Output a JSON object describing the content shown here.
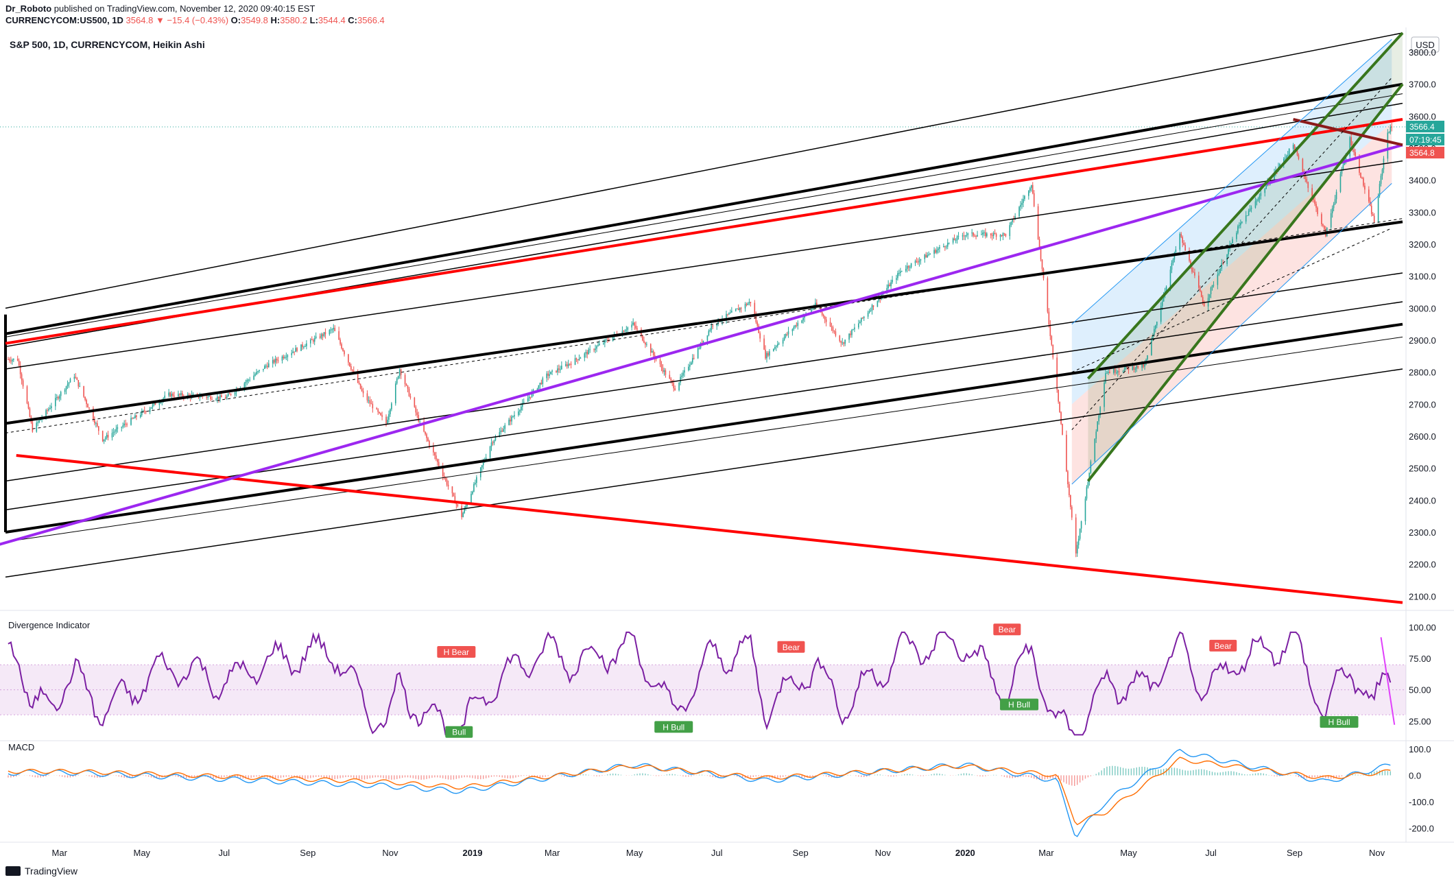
{
  "header": {
    "author": "Dr_Roboto",
    "published": "published on TradingView.com, November 12, 2020 09:40:15 EST",
    "symbol": "CURRENCYCOM:US500, 1D",
    "last": "3564.8",
    "change": "▼ −15.4 (−0.43%)",
    "o_label": "O:",
    "o": "3549.8",
    "h_label": "H:",
    "h": "3580.2",
    "l_label": "L:",
    "l": "3544.4",
    "c_label": "C:",
    "c": "3566.4"
  },
  "pane_title": "S&P 500, 1D, CURRENCYCOM, Heikin Ashi",
  "currency": "USD",
  "price_badges": {
    "last": "3566.4",
    "countdown": "07:19:45",
    "prev": "3564.8"
  },
  "colors": {
    "up": "#26a69a",
    "down": "#ef5350",
    "rsi": "#7b1fa2",
    "macd": "#2196f3",
    "signal": "#ff6d00",
    "trend_black": "#000000",
    "trend_red": "#ff0000",
    "trend_purple": "#9c27f0",
    "trend_green": "#38761d",
    "trend_darkred": "#8b1a1a",
    "bull": "#43a047",
    "bear": "#f05350"
  },
  "footer": {
    "brand": "TradingView",
    "icon": "tradingview-logo"
  },
  "chart_data": [
    {
      "type": "candlestick",
      "title": "S&P 500, 1D, CURRENCYCOM, Heikin Ashi",
      "x_ticks": [
        "Mar",
        "May",
        "Jul",
        "Sep",
        "Nov",
        "2019",
        "Mar",
        "May",
        "Jul",
        "Sep",
        "Nov",
        "2020",
        "Mar",
        "May",
        "Jul",
        "Sep",
        "Nov"
      ],
      "y_ticks": [
        2100.0,
        2200.0,
        2300.0,
        2400.0,
        2500.0,
        2600.0,
        2700.0,
        2800.0,
        2900.0,
        3000.0,
        3100.0,
        3200.0,
        3300.0,
        3400.0,
        3500.0,
        3600.0,
        3700.0,
        3800.0
      ],
      "ylim": [
        2060,
        3860
      ],
      "last_price": 3566.4,
      "series": [
        {
          "name": "close",
          "points": [
            [
              "2018-01-29",
              2840
            ],
            [
              "2018-02-09",
              2620
            ],
            [
              "2018-03-12",
              2790
            ],
            [
              "2018-04-02",
              2590
            ],
            [
              "2018-05-21",
              2730
            ],
            [
              "2018-07-02",
              2720
            ],
            [
              "2018-08-01",
              2820
            ],
            [
              "2018-09-20",
              2935
            ],
            [
              "2018-10-12",
              2730
            ],
            [
              "2018-10-29",
              2640
            ],
            [
              "2018-11-08",
              2810
            ],
            [
              "2018-11-23",
              2640
            ],
            [
              "2018-12-24",
              2350
            ],
            [
              "2019-01-15",
              2580
            ],
            [
              "2019-02-25",
              2790
            ],
            [
              "2019-03-15",
              2830
            ],
            [
              "2019-04-30",
              2950
            ],
            [
              "2019-05-31",
              2750
            ],
            [
              "2019-06-28",
              2950
            ],
            [
              "2019-07-26",
              3020
            ],
            [
              "2019-08-06",
              2850
            ],
            [
              "2019-09-12",
              3010
            ],
            [
              "2019-10-02",
              2890
            ],
            [
              "2019-11-15",
              3120
            ],
            [
              "2019-12-31",
              3230
            ],
            [
              "2020-01-31",
              3230
            ],
            [
              "2020-02-19",
              3390
            ],
            [
              "2020-03-09",
              2750
            ],
            [
              "2020-03-23",
              2230
            ],
            [
              "2020-04-14",
              2800
            ],
            [
              "2020-05-13",
              2820
            ],
            [
              "2020-06-08",
              3230
            ],
            [
              "2020-06-26",
              3010
            ],
            [
              "2020-07-21",
              3250
            ],
            [
              "2020-08-31",
              3510
            ],
            [
              "2020-09-24",
              3230
            ],
            [
              "2020-10-12",
              3530
            ],
            [
              "2020-10-30",
              3270
            ],
            [
              "2020-11-09",
              3550
            ],
            [
              "2020-11-12",
              3566
            ]
          ]
        }
      ]
    },
    {
      "type": "line",
      "title": "Divergence Indicator",
      "y_ticks": [
        25.0,
        50.0,
        75.0,
        100.0
      ],
      "ylim": [
        12,
        108
      ],
      "band": [
        30,
        70
      ],
      "series": [
        {
          "name": "RSI",
          "points": [
            [
              "2018-01-29",
              85
            ],
            [
              "2018-02-09",
              30
            ],
            [
              "2018-03-12",
              62
            ],
            [
              "2018-04-02",
              32
            ],
            [
              "2018-05-21",
              70
            ],
            [
              "2018-07-02",
              55
            ],
            [
              "2018-08-01",
              72
            ],
            [
              "2018-09-20",
              82
            ],
            [
              "2018-10-12",
              38
            ],
            [
              "2018-10-29",
              22
            ],
            [
              "2018-11-08",
              55
            ],
            [
              "2018-11-23",
              32
            ],
            [
              "2018-12-24",
              18
            ],
            [
              "2019-01-15",
              55
            ],
            [
              "2019-02-25",
              82
            ],
            [
              "2019-03-15",
              72
            ],
            [
              "2019-04-30",
              85
            ],
            [
              "2019-05-31",
              30
            ],
            [
              "2019-06-28",
              78
            ],
            [
              "2019-07-26",
              80
            ],
            [
              "2019-08-06",
              35
            ],
            [
              "2019-09-12",
              70
            ],
            [
              "2019-10-02",
              35
            ],
            [
              "2019-11-15",
              82
            ],
            [
              "2019-12-31",
              88
            ],
            [
              "2020-01-31",
              45
            ],
            [
              "2020-02-19",
              82
            ],
            [
              "2020-03-09",
              20
            ],
            [
              "2020-03-23",
              14
            ],
            [
              "2020-04-14",
              55
            ],
            [
              "2020-05-13",
              50
            ],
            [
              "2020-06-08",
              84
            ],
            [
              "2020-06-26",
              48
            ],
            [
              "2020-07-21",
              74
            ],
            [
              "2020-08-31",
              90
            ],
            [
              "2020-09-24",
              32
            ],
            [
              "2020-10-12",
              70
            ],
            [
              "2020-10-30",
              33
            ],
            [
              "2020-11-09",
              68
            ],
            [
              "2020-11-12",
              70
            ]
          ]
        }
      ],
      "labels": [
        "H Bear",
        "Bull",
        "H Bull",
        "Bear",
        "Bear",
        "H Bull",
        "Bear",
        "H Bull"
      ]
    },
    {
      "type": "line",
      "title": "MACD",
      "y_ticks": [
        -200.0,
        -100.0,
        0.0,
        100.0
      ],
      "ylim": [
        -245,
        110
      ],
      "series": [
        {
          "name": "MACD",
          "points": [
            [
              "2018-03-12",
              10
            ],
            [
              "2018-10-29",
              -40
            ],
            [
              "2018-12-24",
              -60
            ],
            [
              "2019-04-30",
              40
            ],
            [
              "2019-08-06",
              -20
            ],
            [
              "2019-12-31",
              40
            ],
            [
              "2020-03-09",
              -20
            ],
            [
              "2020-03-23",
              -230
            ],
            [
              "2020-04-14",
              -100
            ],
            [
              "2020-06-08",
              90
            ],
            [
              "2020-09-24",
              -25
            ],
            [
              "2020-11-12",
              40
            ]
          ]
        },
        {
          "name": "Signal",
          "points": [
            [
              "2018-03-12",
              15
            ],
            [
              "2018-10-29",
              -25
            ],
            [
              "2018-12-24",
              -45
            ],
            [
              "2019-04-30",
              35
            ],
            [
              "2019-08-06",
              -10
            ],
            [
              "2019-12-31",
              35
            ],
            [
              "2020-03-09",
              0
            ],
            [
              "2020-03-23",
              -180
            ],
            [
              "2020-04-14",
              -140
            ],
            [
              "2020-06-08",
              60
            ],
            [
              "2020-09-24",
              -10
            ],
            [
              "2020-11-12",
              15
            ]
          ]
        }
      ]
    }
  ]
}
